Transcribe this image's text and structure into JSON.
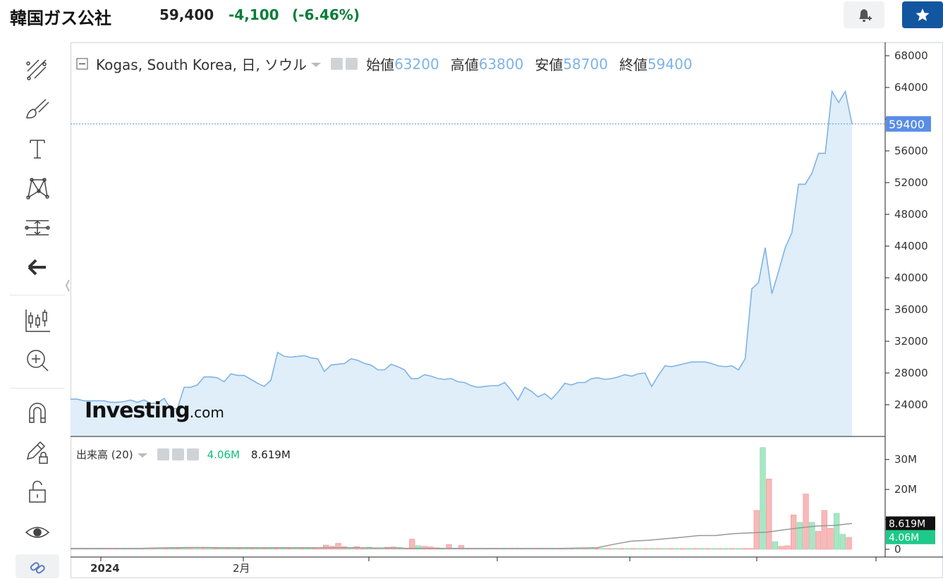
{
  "header": {
    "title": "韓国ガス公社",
    "price": "59,400",
    "change": "-4,100",
    "change_pct": "(-6.46%)"
  },
  "colors": {
    "change": "#0a7d38",
    "line": "#7fb3e6",
    "area": "#dfeef9",
    "price_tag": "#5a8de6",
    "vol_up": "#a8e6c4",
    "vol_down": "#f7b9b9",
    "star_button": "#1256a0"
  },
  "toolbar": {
    "icons": [
      "crosshair-lines-icon",
      "brush-icon",
      "text-icon",
      "pattern-icon",
      "measure-icon",
      "back-arrow-icon",
      "candles-icon",
      "zoom-in-icon",
      "magnet-icon",
      "pencil-lock-icon",
      "unlock-icon",
      "eye-icon",
      "link-icon"
    ]
  },
  "chart": {
    "legend": {
      "symbol": "Kogas, South Korea, 日, ソウル",
      "open_label": "始値",
      "open": "63200",
      "high_label": "高値",
      "high": "63800",
      "low_label": "安値",
      "low": "58700",
      "close_label": "終値",
      "close": "59400"
    },
    "price_tag": "59400",
    "volume_legend": {
      "label": "出来高 (20)",
      "value1": "4.06M",
      "value2": "8.619M"
    },
    "volume_tags": [
      "8.619M",
      "4.06M"
    ],
    "watermark": "Investing",
    "watermark_suffix": ".com",
    "x_labels": [
      {
        "text": "2024",
        "bold": true
      },
      {
        "text": "2月",
        "bold": false
      }
    ]
  },
  "chart_data": [
    {
      "type": "area",
      "x_start": "2024",
      "yaxis": {
        "min": 20000,
        "max": 68000,
        "ticks": [
          24000,
          28000,
          32000,
          36000,
          40000,
          44000,
          48000,
          52000,
          56000,
          60000,
          64000,
          68000
        ],
        "tick_labels": [
          "24000",
          "28000",
          "32000",
          "36000",
          "40000",
          "44000",
          "48000",
          "52000",
          "56000",
          "",
          "64000",
          "68000"
        ]
      },
      "values": [
        24700,
        24700,
        24500,
        24500,
        24500,
        24500,
        24300,
        24300,
        24400,
        24600,
        24300,
        24600,
        24200,
        24200,
        24800,
        23500,
        23500,
        26200,
        26200,
        26500,
        27500,
        27500,
        27400,
        26900,
        27900,
        27700,
        27700,
        27200,
        26700,
        26300,
        27100,
        30600,
        30100,
        30000,
        30100,
        30200,
        29900,
        29800,
        28200,
        29000,
        29100,
        29200,
        29800,
        29600,
        29200,
        29000,
        28400,
        28400,
        29100,
        28800,
        28400,
        27300,
        27300,
        27800,
        27600,
        27300,
        27200,
        27300,
        26900,
        26800,
        26400,
        26200,
        26300,
        26400,
        26400,
        26800,
        25800,
        24600,
        26200,
        25700,
        25000,
        25400,
        24700,
        25600,
        26700,
        26500,
        26800,
        26800,
        27300,
        27400,
        27200,
        27300,
        27500,
        27800,
        27600,
        27900,
        28000,
        26300,
        27700,
        28900,
        28800,
        29000,
        29200,
        29400,
        29400,
        29400,
        29200,
        28900,
        28800,
        28900,
        28400,
        29800,
        38600,
        39400,
        43800,
        38000,
        40800,
        43800,
        45700,
        51800,
        51800,
        53200,
        55700,
        55700,
        63500,
        62100,
        63500,
        59400
      ]
    },
    {
      "type": "bar",
      "name": "出来高",
      "yaxis": {
        "ticks": [
          0,
          10,
          20,
          30
        ],
        "tick_labels": [
          "0",
          "",
          "20M",
          "30M"
        ]
      },
      "values": [
        0.3,
        0.3,
        0.3,
        0.3,
        0.3,
        0.3,
        0.3,
        0.3,
        0.3,
        0.3,
        0.3,
        0.3,
        0.3,
        0.3,
        0.3,
        0.3,
        0.3,
        0.3,
        0.3,
        0.3,
        0.3,
        0.3,
        0.3,
        0.3,
        0.3,
        0.3,
        0.3,
        0.3,
        0.3,
        0.3,
        0.3,
        0.3,
        0.3,
        0.3,
        0.3,
        0.3,
        0.3,
        0.3,
        0.3,
        0.3,
        0.4,
        1.4,
        1.0,
        2.0,
        0.9,
        0.6,
        0.9,
        0.5,
        0.7,
        0.5,
        0.4,
        0.7,
        0.8,
        0.6,
        0.3,
        3.4,
        1.2,
        1.0,
        0.8,
        0.5,
        0.3,
        1.6,
        0.4,
        1.3,
        0.4,
        0.3,
        0.3,
        0.3,
        0.3,
        0.3,
        0.3,
        0.3,
        0.3,
        0.3,
        0.3,
        0.3,
        0.3,
        0.3,
        0.3,
        0.3,
        0.3,
        0.3,
        0.3,
        0.3,
        0.3,
        0.3,
        0.3,
        0.3,
        0.3,
        0.3,
        0.3,
        0.3,
        0.3,
        0.3,
        0.3,
        0.3,
        0.3,
        0.3,
        0.3,
        0.3,
        0.3,
        0.3,
        0.3,
        0.3,
        0.3,
        0.3,
        0.3,
        0.3,
        0.3,
        0.3,
        0.3,
        13.0,
        34.0,
        23.5,
        2.5,
        1.0,
        1.2,
        11.5,
        9.0,
        18.5,
        9.0,
        6.0,
        13.0,
        7.0,
        12.0,
        5.0,
        4.0
      ],
      "up": [
        false,
        true,
        false,
        true,
        true,
        false,
        false,
        false,
        true,
        false,
        true,
        false,
        true,
        false,
        true,
        false,
        true,
        false,
        true,
        false,
        true,
        false,
        true,
        false,
        true,
        false,
        true,
        false,
        true,
        false,
        true,
        false,
        true,
        false,
        true,
        false,
        true,
        false,
        true,
        false,
        false,
        false,
        false,
        false,
        false,
        true,
        false,
        false,
        true,
        false,
        true,
        false,
        false,
        true,
        false,
        false,
        true,
        false,
        false,
        false,
        true,
        false,
        true,
        false,
        true,
        false,
        true,
        false,
        true,
        false,
        true,
        false,
        true,
        false,
        true,
        false,
        true,
        false,
        true,
        false,
        true,
        false,
        true,
        false,
        true,
        false,
        true,
        false,
        true,
        false,
        true,
        false,
        true,
        false,
        true,
        false,
        true,
        false,
        true,
        false,
        true,
        false,
        true,
        false,
        true,
        false,
        true,
        false,
        true,
        false,
        false,
        false,
        true,
        false,
        true,
        false,
        false,
        false,
        true,
        false,
        true,
        false,
        false,
        false,
        true,
        true
      ],
      "ma_values": [
        0.3,
        0.3,
        0.3,
        0.3,
        0.3,
        0.4,
        0.5,
        0.6,
        0.6,
        0.5,
        0.5,
        0.5,
        0.5,
        0.5,
        0.5,
        0.5,
        0.5,
        0.5,
        0.4,
        0.4,
        0.3,
        0.3,
        0.3,
        0.3,
        0.3,
        0.3,
        0.3,
        0.3,
        0.3,
        0.3,
        0.4,
        0.5,
        1.7,
        2.7,
        3.0,
        3.5,
        4.0,
        4.6,
        4.6,
        5.2,
        5.5,
        5.7,
        6.5,
        7.2,
        7.8,
        8.0,
        8.619
      ]
    }
  ]
}
